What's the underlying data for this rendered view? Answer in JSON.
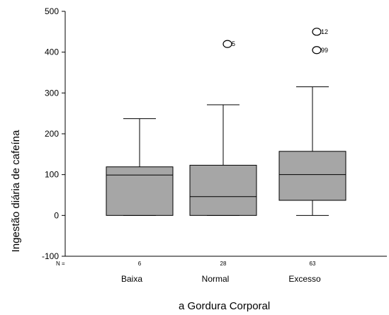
{
  "chart_data": {
    "type": "boxplot",
    "ylabel": "Ingestão diária de cafeína",
    "xlabel": "a Gordura Corporal",
    "ylim": [
      -100,
      500
    ],
    "yticks": [
      -100,
      0,
      100,
      200,
      300,
      400,
      500
    ],
    "n_label": "N =",
    "box_fill": "#a6a6a6",
    "groups": [
      {
        "category": "Baixa",
        "n": "6",
        "whisker_low": 0,
        "q1": 0,
        "median": 99,
        "q3": 119,
        "whisker_high": 237,
        "outliers": []
      },
      {
        "category": "Normal",
        "n": "28",
        "whisker_low": 0,
        "q1": 0,
        "median": 46,
        "q3": 123,
        "whisker_high": 271,
        "outliers": [
          {
            "value": 420,
            "label": "5"
          }
        ]
      },
      {
        "category": "Excesso",
        "n": "63",
        "whisker_low": 0,
        "q1": 37,
        "median": 100,
        "q3": 157,
        "whisker_high": 315,
        "outliers": [
          {
            "value": 450,
            "label": "12"
          },
          {
            "value": 405,
            "label": "99"
          }
        ]
      }
    ]
  }
}
